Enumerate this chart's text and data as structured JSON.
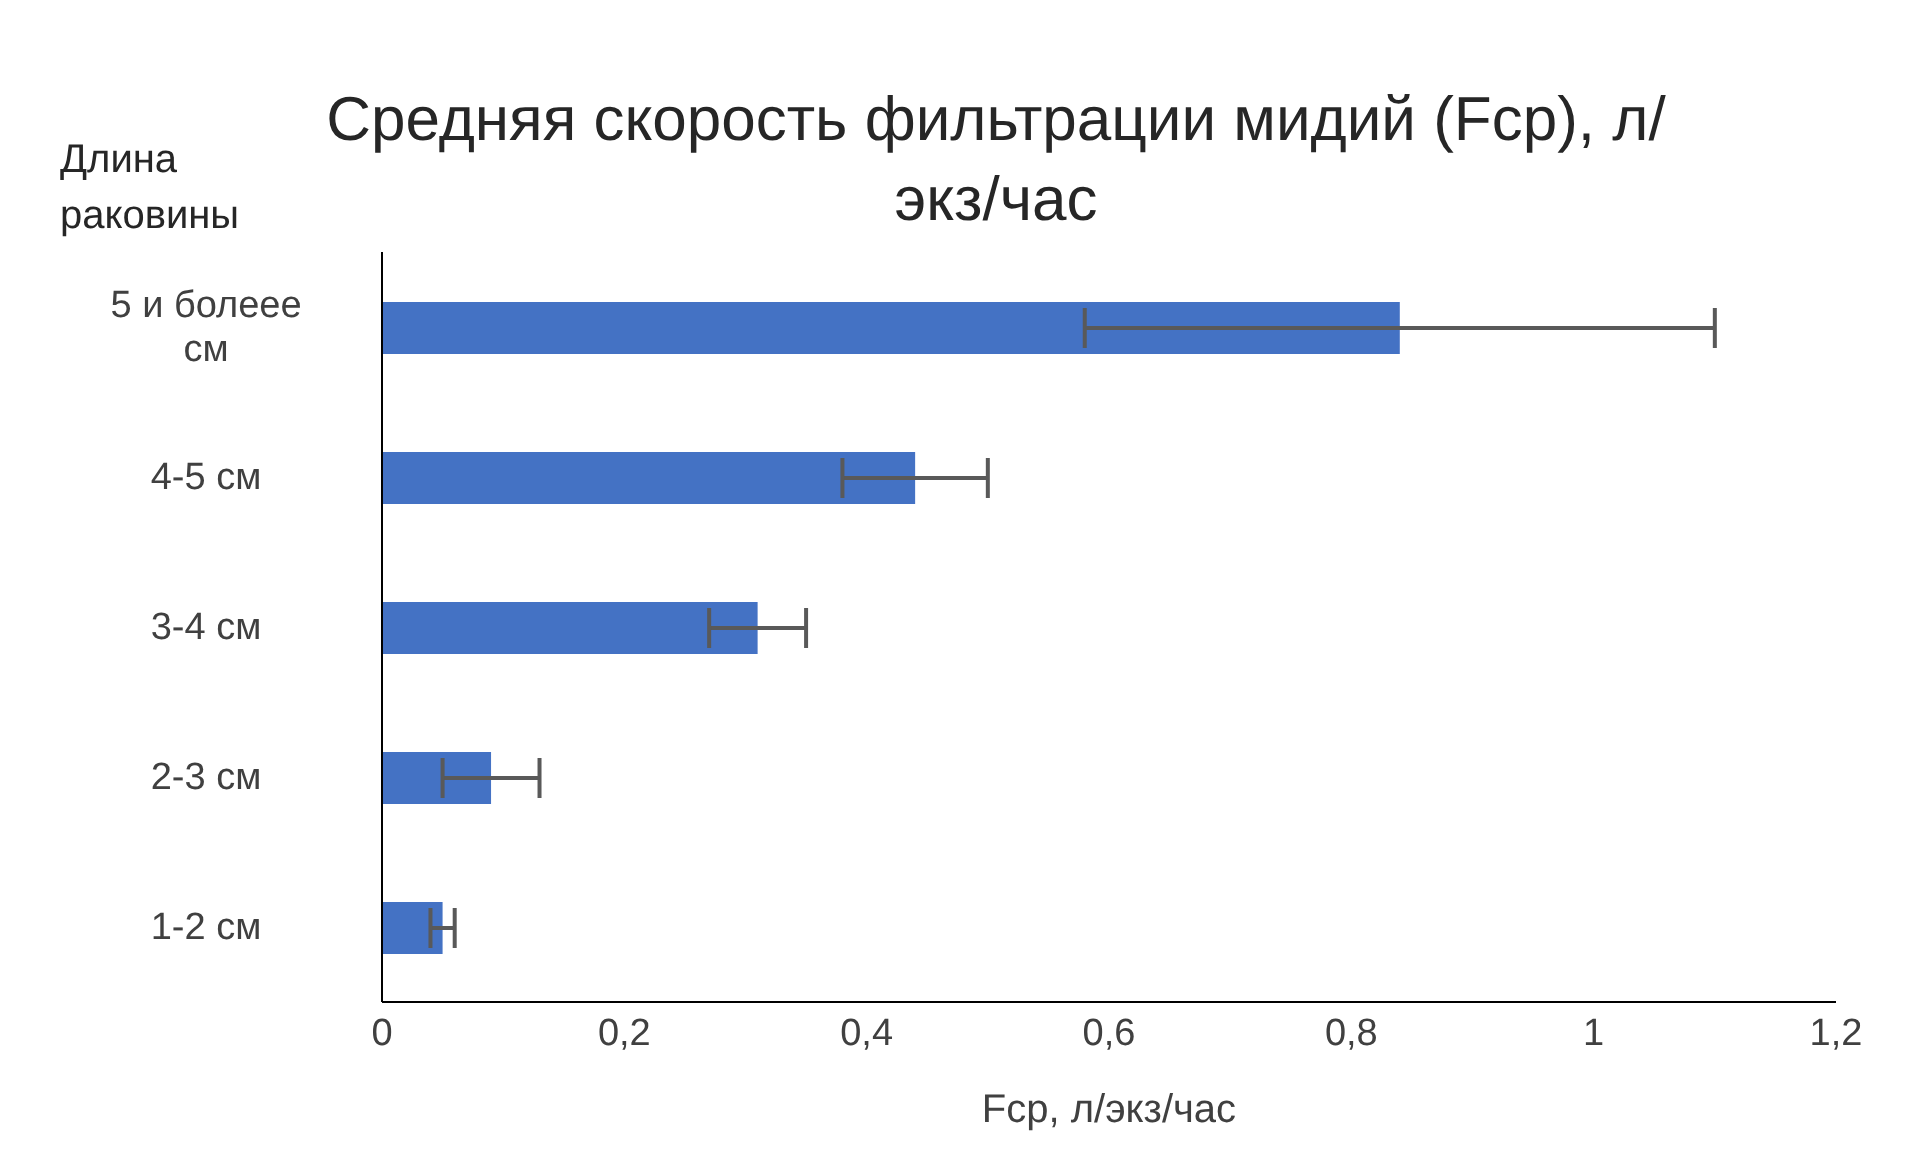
{
  "chart_data": {
    "type": "bar",
    "orientation": "horizontal",
    "title": "Средняя скорость фильтрации мидий (Fср), л/экз/час",
    "xlabel": "Fср, л/экз/час",
    "ylabel": "Длина раковины",
    "categories": [
      "5 и болеее см",
      "4-5 см",
      "3-4 см",
      "2-3 см",
      "1-2 см"
    ],
    "values": [
      0.84,
      0.44,
      0.31,
      0.09,
      0.05
    ],
    "errors": [
      0.26,
      0.06,
      0.04,
      0.04,
      0.01
    ],
    "color": "#4472c4",
    "xlim": [
      0,
      1.2
    ],
    "xticks": [
      {
        "value": 0,
        "label": "0"
      },
      {
        "value": 0.2,
        "label": "0,2"
      },
      {
        "value": 0.4,
        "label": "0,4"
      },
      {
        "value": 0.6,
        "label": "0,6"
      },
      {
        "value": 0.8,
        "label": "0,8"
      },
      {
        "value": 1,
        "label": "1"
      },
      {
        "value": 1.2,
        "label": "1,2"
      }
    ],
    "grid": false,
    "legend": false
  }
}
